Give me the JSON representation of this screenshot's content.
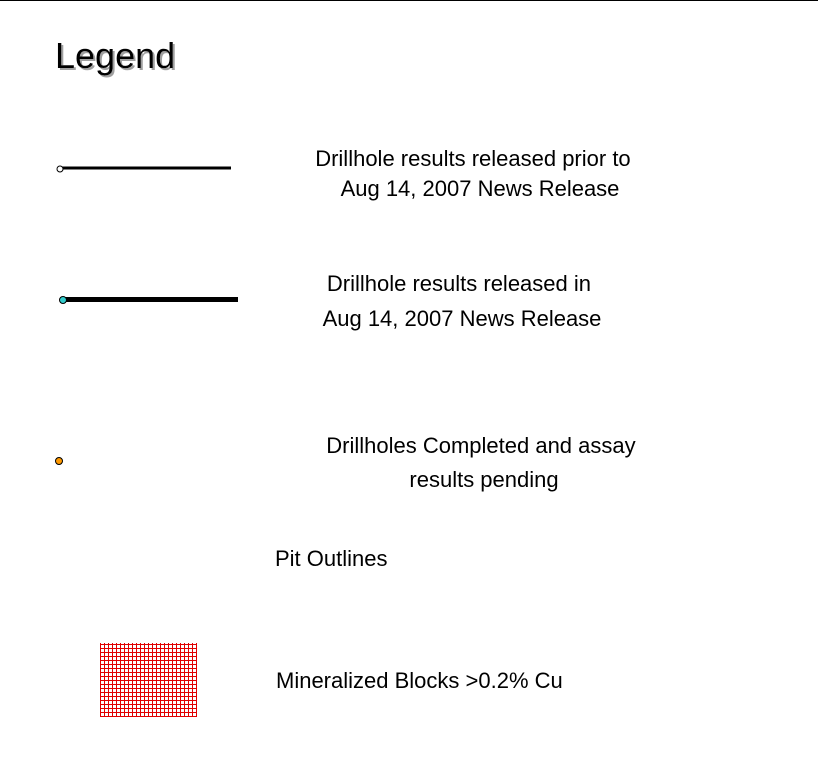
{
  "title": "Legend",
  "items": [
    {
      "label": [
        "Drillhole results released prior to",
        "Aug 14, 2007 News Release"
      ]
    },
    {
      "label": [
        "Drillhole results released in",
        "Aug 14, 2007 News Release"
      ]
    },
    {
      "label": [
        "Drillholes Completed and assay",
        "results pending"
      ]
    },
    {
      "label": [
        "Pit Outlines"
      ]
    },
    {
      "label": [
        "Mineralized Blocks >0.2% Cu"
      ]
    }
  ]
}
